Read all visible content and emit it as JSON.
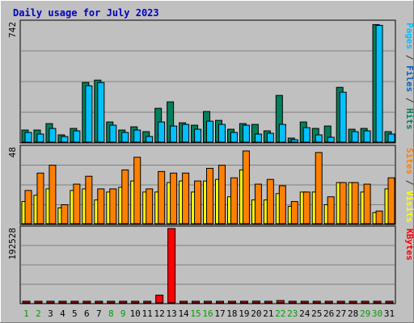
{
  "chart_data": {
    "type": "bar",
    "title": "Daily usage for July 2023",
    "categories": [
      "1",
      "2",
      "3",
      "4",
      "5",
      "6",
      "7",
      "8",
      "9",
      "10",
      "11",
      "12",
      "13",
      "14",
      "15",
      "16",
      "17",
      "18",
      "19",
      "20",
      "21",
      "22",
      "23",
      "24",
      "25",
      "26",
      "27",
      "28",
      "29",
      "30",
      "31"
    ],
    "weekend_days": [
      "1",
      "2",
      "8",
      "9",
      "15",
      "16",
      "22",
      "23",
      "29",
      "30"
    ],
    "panels": [
      {
        "id": "hits",
        "ymax_label": "742",
        "ymax": 742,
        "right_label": [
          {
            "text": "Pages",
            "color": "#00c0ff"
          },
          {
            "text": " / ",
            "color": "#303030"
          },
          {
            "text": "Files",
            "color": "#0060c0"
          },
          {
            "text": " / ",
            "color": "#303030"
          },
          {
            "text": "Hits",
            "color": "#008060"
          }
        ],
        "series": [
          {
            "name": "Hits",
            "color": "#00805c",
            "values": [
              75,
              75,
              115,
              45,
              85,
              370,
              385,
              125,
              75,
              95,
              65,
              210,
              250,
              120,
              105,
              190,
              135,
              80,
              115,
              110,
              70,
              290,
              25,
              125,
              85,
              100,
              340,
              80,
              85,
              730,
              65
            ]
          },
          {
            "name": "Files",
            "color": "#0060c0",
            "values": [
              0,
              0,
              0,
              0,
              0,
              0,
              0,
              0,
              0,
              0,
              0,
              0,
              0,
              0,
              0,
              0,
              0,
              0,
              0,
              0,
              0,
              0,
              0,
              0,
              0,
              0,
              0,
              0,
              0,
              0,
              0
            ]
          },
          {
            "name": "Pages",
            "color": "#00c0ff",
            "values": [
              60,
              50,
              85,
              35,
              70,
              350,
              370,
              105,
              60,
              75,
              35,
              125,
              100,
              110,
              80,
              130,
              110,
              60,
              105,
              50,
              55,
              110,
              15,
              90,
              45,
              30,
              310,
              65,
              70,
              725,
              50
            ]
          }
        ]
      },
      {
        "id": "visits",
        "ymax_label": "48",
        "ymax": 48,
        "right_label": [
          {
            "text": "Sites",
            "color": "#ff8000"
          },
          {
            "text": " / ",
            "color": "#303030"
          },
          {
            "text": "Visits",
            "color": "#ffff00"
          }
        ],
        "series": [
          {
            "name": "Visits",
            "color": "#ffff00",
            "values": [
              14,
              18,
              22,
              10,
              21,
              22,
              15,
              20,
              23,
              27,
              20,
              20,
              26,
              27,
              20,
              27,
              28,
              17,
              34,
              15,
              15,
              19,
              11,
              20,
              20,
              12,
              26,
              26,
              20,
              7,
              22
            ]
          },
          {
            "name": "Sites",
            "color": "#ff8000",
            "values": [
              21,
              32,
              37,
              12,
              25,
              30,
              22,
              22,
              34,
              42,
              22,
              33,
              32,
              32,
              27,
              35,
              37,
              29,
              46,
              25,
              28,
              24,
              14,
              20,
              45,
              17,
              26,
              26,
              25,
              8,
              29
            ]
          }
        ]
      },
      {
        "id": "kbytes",
        "ymax_label": "192528",
        "ymax": 192528,
        "right_label": [
          {
            "text": "KBytes",
            "color": "#ff0000"
          }
        ],
        "series": [
          {
            "name": "KBytes",
            "color": "#ff0000",
            "values": [
              1000,
              1000,
              1000,
              1000,
              1000,
              1000,
              1000,
              1000,
              1000,
              1000,
              1000,
              20000,
              192528,
              1000,
              1000,
              1000,
              1000,
              1000,
              1000,
              4500,
              1000,
              6000,
              1000,
              1000,
              1000,
              1000,
              3000,
              1000,
              1000,
              1000,
              1000
            ]
          }
        ]
      }
    ]
  }
}
